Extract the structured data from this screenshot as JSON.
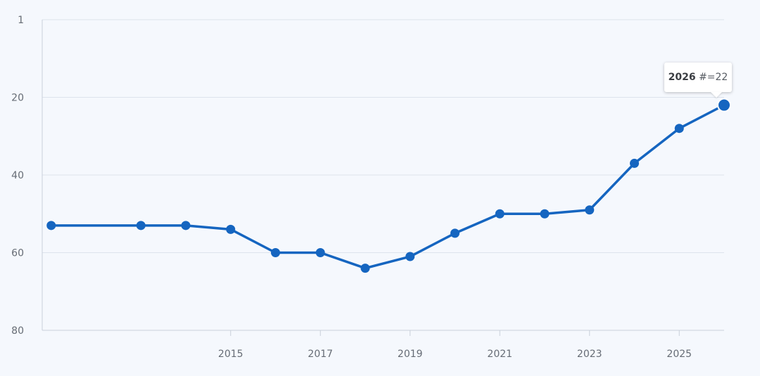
{
  "colors": {
    "line": "#1565c0",
    "grid": "#dde3ec",
    "axis": "#c9d0da",
    "background": "#f5f8fd"
  },
  "chart_data": {
    "type": "line",
    "x": [
      2011,
      2013,
      2014,
      2015,
      2016,
      2017,
      2018,
      2019,
      2020,
      2021,
      2022,
      2023,
      2024,
      2025,
      2026
    ],
    "series": [
      {
        "values": [
          53,
          53,
          53,
          54,
          60,
          60,
          64,
          61,
          55,
          50,
          50,
          49,
          37,
          28,
          22
        ]
      }
    ],
    "y_reversed": true,
    "ylim": [
      80,
      1
    ],
    "y_ticks": [
      "1",
      "20",
      "40",
      "60",
      "80"
    ],
    "x_ticks": [
      "2015",
      "2017",
      "2019",
      "2021",
      "2023",
      "2025"
    ],
    "grid": true,
    "tooltip": {
      "year": "2026",
      "label": "#=22"
    }
  }
}
